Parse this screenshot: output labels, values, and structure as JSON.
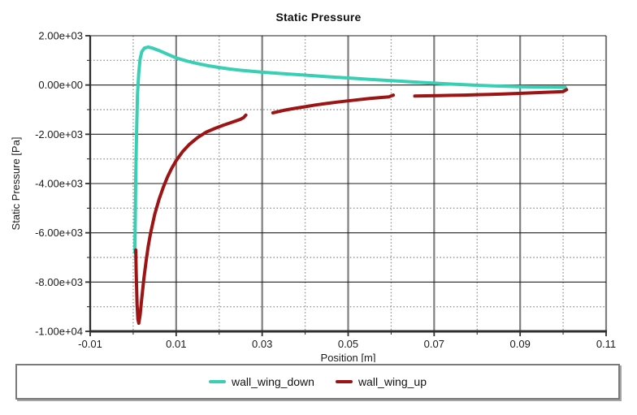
{
  "window": {
    "background": "#ffffff"
  },
  "chart_data": {
    "type": "line",
    "title": "Static Pressure",
    "xlabel": "Position [m]",
    "ylabel": "Static Pressure [Pa]",
    "xlim": [
      -0.01,
      0.11
    ],
    "ylim": [
      -10000,
      2000
    ],
    "grid": true,
    "legend_position": "bottom",
    "x_major_ticks": [
      -0.01,
      0.01,
      0.03,
      0.05,
      0.07,
      0.09,
      0.11
    ],
    "x_major_labels": [
      "-0.01",
      "0.01",
      "0.03",
      "0.05",
      "0.07",
      "0.09",
      "0.11"
    ],
    "x_minor_ticks": [
      0.0,
      0.02,
      0.04,
      0.06,
      0.08,
      0.1
    ],
    "y_major_ticks": [
      2000,
      0,
      -2000,
      -4000,
      -6000,
      -8000,
      -10000
    ],
    "y_major_labels": [
      "2.00e+03",
      "0.00e+00",
      "-2.00e+03",
      "-4.00e+03",
      "-6.00e+03",
      "-8.00e+03",
      "-1.00e+04"
    ],
    "y_minor_ticks": [
      1000,
      -1000,
      -3000,
      -5000,
      -7000,
      -9000
    ],
    "colors": {
      "h_major_grid": "#1f1f1f",
      "v_major_grid": "#7f7f7f",
      "minor_grid": "#969696",
      "axis": "#2e2e2e",
      "text": "#1a1a1a"
    },
    "series": [
      {
        "name": "wall_wing_down",
        "color": "#38cfb4",
        "segments": [
          [
            [
              0.0004,
              -6800
            ],
            [
              0.0005,
              -5200
            ],
            [
              0.0006,
              -3600
            ],
            [
              0.0008,
              -1800
            ],
            [
              0.001,
              -400
            ],
            [
              0.0013,
              500
            ],
            [
              0.0016,
              1050
            ],
            [
              0.002,
              1350
            ],
            [
              0.0026,
              1500
            ],
            [
              0.0035,
              1540
            ],
            [
              0.0045,
              1500
            ],
            [
              0.006,
              1400
            ],
            [
              0.008,
              1250
            ],
            [
              0.01,
              1100
            ],
            [
              0.0125,
              970
            ],
            [
              0.015,
              870
            ],
            [
              0.0175,
              780
            ],
            [
              0.02,
              710
            ],
            [
              0.0225,
              650
            ],
            [
              0.025,
              600
            ],
            [
              0.03,
              520
            ],
            [
              0.035,
              460
            ],
            [
              0.04,
              400
            ],
            [
              0.045,
              340
            ],
            [
              0.05,
              285
            ],
            [
              0.055,
              230
            ],
            [
              0.06,
              180
            ],
            [
              0.065,
              125
            ],
            [
              0.07,
              75
            ],
            [
              0.075,
              30
            ],
            [
              0.08,
              -10
            ],
            [
              0.085,
              -45
            ],
            [
              0.09,
              -70
            ],
            [
              0.095,
              -85
            ],
            [
              0.1005,
              -95
            ]
          ]
        ]
      },
      {
        "name": "wall_wing_up",
        "color": "#9d1414",
        "segments": [
          [
            [
              0.0006,
              -6700
            ],
            [
              0.0007,
              -7600
            ],
            [
              0.0009,
              -8900
            ],
            [
              0.0011,
              -9500
            ],
            [
              0.0013,
              -9670
            ],
            [
              0.0016,
              -9350
            ],
            [
              0.002,
              -8650
            ],
            [
              0.0025,
              -7850
            ],
            [
              0.003,
              -7150
            ],
            [
              0.0035,
              -6550
            ],
            [
              0.004,
              -6050
            ],
            [
              0.005,
              -5250
            ],
            [
              0.006,
              -4650
            ],
            [
              0.007,
              -4150
            ],
            [
              0.008,
              -3720
            ],
            [
              0.009,
              -3370
            ],
            [
              0.01,
              -3070
            ],
            [
              0.0115,
              -2700
            ],
            [
              0.013,
              -2420
            ],
            [
              0.015,
              -2130
            ],
            [
              0.017,
              -1910
            ],
            [
              0.019,
              -1760
            ],
            [
              0.021,
              -1630
            ],
            [
              0.023,
              -1510
            ],
            [
              0.025,
              -1390
            ],
            [
              0.0257,
              -1320
            ],
            [
              0.0262,
              -1220
            ]
          ],
          [
            [
              0.0325,
              -1130
            ],
            [
              0.035,
              -1030
            ],
            [
              0.0375,
              -950
            ],
            [
              0.04,
              -880
            ],
            [
              0.0425,
              -810
            ],
            [
              0.045,
              -750
            ],
            [
              0.0475,
              -695
            ],
            [
              0.05,
              -645
            ],
            [
              0.0525,
              -595
            ],
            [
              0.055,
              -550
            ],
            [
              0.0575,
              -510
            ],
            [
              0.0595,
              -480
            ],
            [
              0.0605,
              -410
            ]
          ],
          [
            [
              0.0655,
              -450
            ],
            [
              0.068,
              -440
            ],
            [
              0.071,
              -430
            ],
            [
              0.074,
              -420
            ],
            [
              0.077,
              -410
            ],
            [
              0.08,
              -395
            ],
            [
              0.083,
              -380
            ],
            [
              0.086,
              -365
            ],
            [
              0.089,
              -345
            ],
            [
              0.092,
              -325
            ],
            [
              0.095,
              -305
            ],
            [
              0.098,
              -285
            ],
            [
              0.1,
              -265
            ],
            [
              0.1008,
              -190
            ]
          ]
        ]
      }
    ]
  }
}
